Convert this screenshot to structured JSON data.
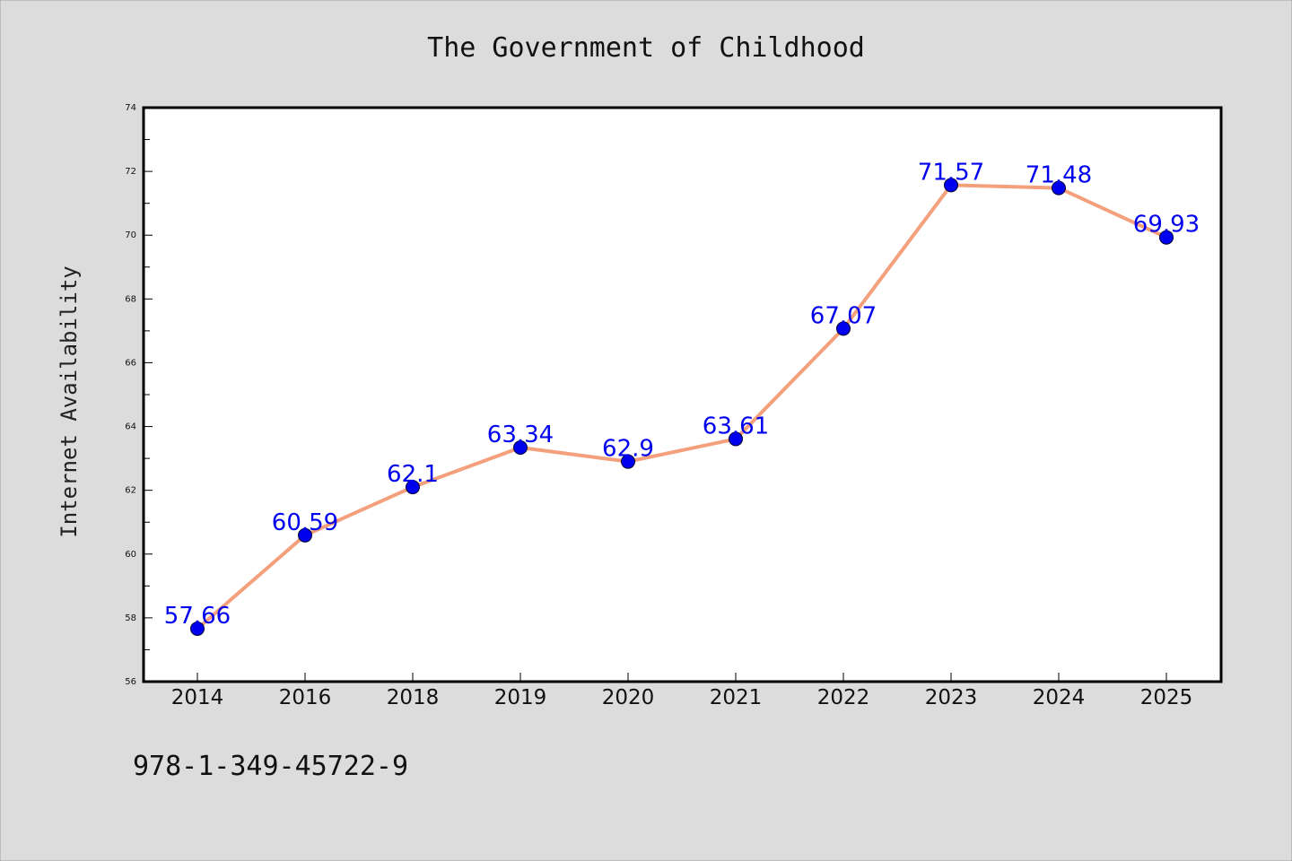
{
  "chart_data": {
    "type": "line",
    "title": "The Government of Childhood",
    "xlabel": "",
    "ylabel": "Internet Availability",
    "categories": [
      "2014",
      "2016",
      "2018",
      "2019",
      "2020",
      "2021",
      "2022",
      "2023",
      "2024",
      "2025"
    ],
    "series": [
      {
        "values": [
          57.66,
          60.59,
          62.1,
          63.34,
          62.9,
          63.61,
          67.07,
          71.57,
          71.48,
          69.93
        ]
      }
    ],
    "data_labels": [
      "57.66",
      "60.59",
      "62.1",
      "63.34",
      "62.9",
      "63.61",
      "67.07",
      "71.57",
      "71.48",
      "69.93"
    ],
    "ylim": [
      56,
      74
    ],
    "yticks": [
      "56",
      "58",
      "60",
      "62",
      "64",
      "66",
      "68",
      "70",
      "72",
      "74"
    ],
    "grid": false,
    "legend": "none",
    "colors": {
      "line": "#f4a07c",
      "marker": "#0000ee",
      "label": "#0000ee",
      "plot_bg": "#ffffff",
      "figure_bg": "#dcdcdc"
    }
  },
  "footer": {
    "isbn": "978-1-349-45722-9"
  }
}
